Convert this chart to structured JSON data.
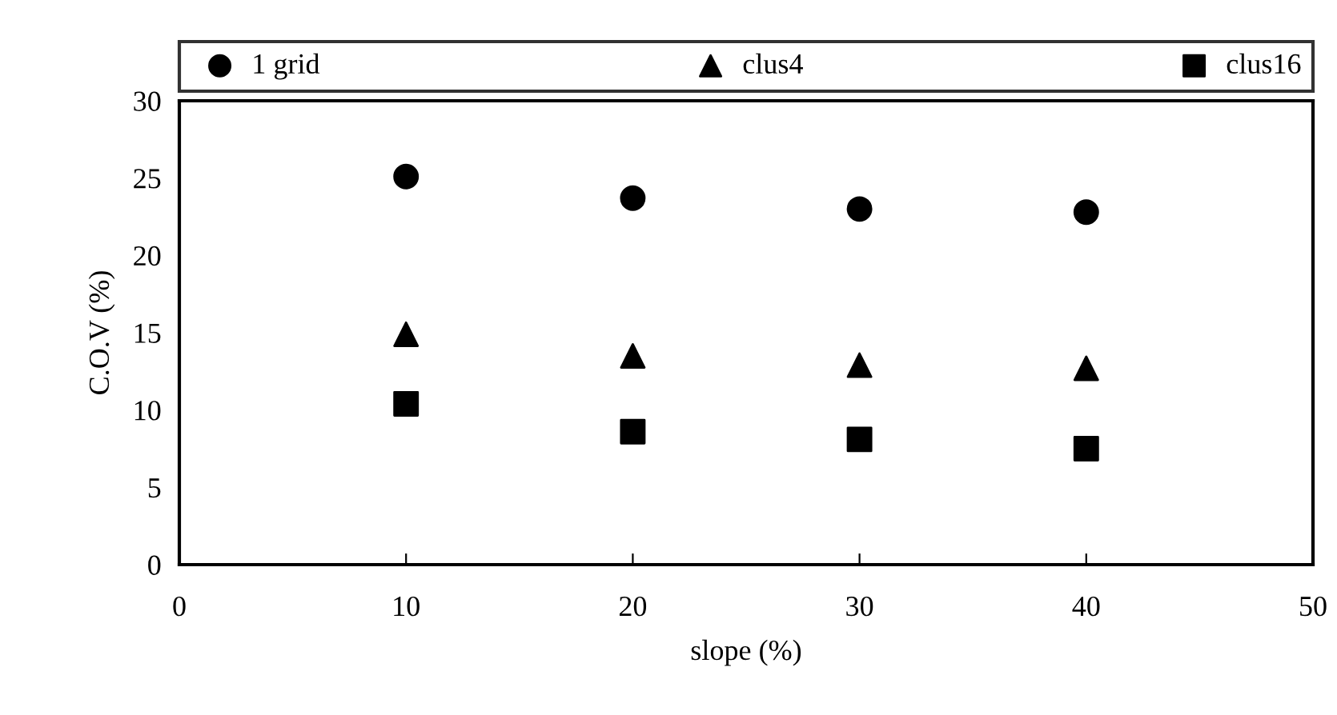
{
  "chart_data": {
    "type": "scatter",
    "xlabel": "slope (%)",
    "ylabel": "C.O.V (%)",
    "x": [
      10,
      20,
      30,
      40
    ],
    "series": [
      {
        "name": "1 grid",
        "color": "#000000",
        "marker": "circle",
        "values": [
          25.1,
          23.7,
          23.0,
          22.8
        ]
      },
      {
        "name": "clus4",
        "color": "#000000",
        "marker": "triangle",
        "values": [
          14.9,
          13.5,
          12.9,
          12.7
        ]
      },
      {
        "name": "clus16",
        "color": "#000000",
        "marker": "square",
        "values": [
          10.4,
          8.6,
          8.1,
          7.5
        ]
      }
    ],
    "xlim": [
      0,
      50
    ],
    "xticks": [
      0,
      10,
      20,
      30,
      40,
      50
    ],
    "ylim": [
      0,
      30
    ],
    "yticks": [
      0,
      5,
      10,
      15,
      20,
      25,
      30
    ],
    "grid": false,
    "legend": "top"
  }
}
